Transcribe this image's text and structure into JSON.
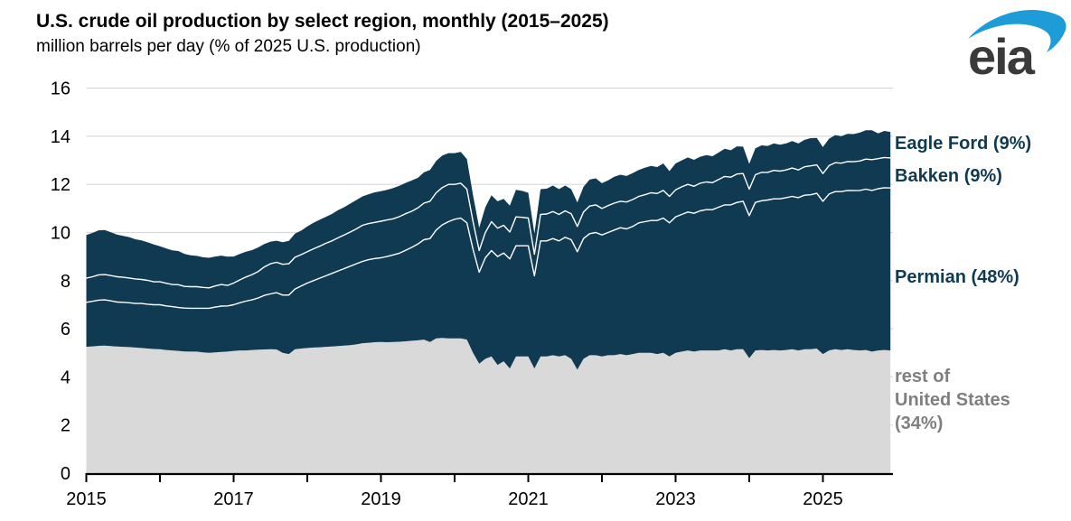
{
  "header": {
    "title": "U.S. crude oil production by select region, monthly (2015–2025)",
    "subtitle": "million barrels per day (% of 2025 U.S. production)"
  },
  "logo": {
    "text": "eia",
    "swoosh_color": "#1e9cd8",
    "text_color": "#3a3a3a"
  },
  "chart_data": {
    "type": "area",
    "stacked": true,
    "title": "U.S. crude oil production by select region, monthly (2015–2025)",
    "units": "million barrels per day",
    "x_start": "2015-01",
    "x_end": "2025-12",
    "frequency": "monthly",
    "xlim_years": [
      2015,
      2025.92
    ],
    "ylim": [
      0,
      16
    ],
    "y_ticks": [
      0,
      2,
      4,
      6,
      8,
      10,
      12,
      14,
      16
    ],
    "x_tick_years": [
      2015,
      2016,
      2017,
      2018,
      2019,
      2020,
      2021,
      2022,
      2023,
      2024,
      2025
    ],
    "x_label_years": [
      "2015",
      "2017",
      "2019",
      "2021",
      "2023",
      "2025"
    ],
    "grid": "horizontal",
    "legend_position": "right-annotations",
    "colors": {
      "region_fill": "#0f3a52",
      "rest_fill": "#d9d9d9",
      "separator_line": "#ffffff",
      "gridline": "#d9d9d9",
      "axis": "#000000"
    },
    "series_labels": {
      "eagle_ford": "Eagle Ford (9%)",
      "bakken": "Bakken (9%)",
      "permian": "Permian (48%)",
      "rest": "rest of\nUnited States\n(34%)"
    },
    "series": [
      {
        "name": "rest of United States",
        "share_of_2025_production": "34%",
        "color": "#d9d9d9",
        "values": [
          5.25,
          5.27,
          5.29,
          5.3,
          5.28,
          5.26,
          5.25,
          5.24,
          5.22,
          5.2,
          5.18,
          5.16,
          5.15,
          5.12,
          5.1,
          5.08,
          5.06,
          5.05,
          5.05,
          5.02,
          5.0,
          5.02,
          5.04,
          5.05,
          5.08,
          5.1,
          5.1,
          5.12,
          5.13,
          5.14,
          5.15,
          5.14,
          5.0,
          4.95,
          5.15,
          5.18,
          5.2,
          5.22,
          5.23,
          5.25,
          5.26,
          5.28,
          5.3,
          5.32,
          5.35,
          5.4,
          5.42,
          5.44,
          5.45,
          5.44,
          5.45,
          5.46,
          5.48,
          5.5,
          5.52,
          5.55,
          5.45,
          5.6,
          5.62,
          5.6,
          5.6,
          5.6,
          5.55,
          5.0,
          4.55,
          4.75,
          4.85,
          4.5,
          4.65,
          4.35,
          4.85,
          4.85,
          4.85,
          4.35,
          4.85,
          4.85,
          4.9,
          4.85,
          4.9,
          4.75,
          4.3,
          4.75,
          4.9,
          4.9,
          4.85,
          4.9,
          4.9,
          4.95,
          4.9,
          4.95,
          5.0,
          5.0,
          5.0,
          4.95,
          5.0,
          4.85,
          5.0,
          5.05,
          5.1,
          5.05,
          5.1,
          5.1,
          5.1,
          5.1,
          5.15,
          5.1,
          5.15,
          5.15,
          4.78,
          5.1,
          5.12,
          5.1,
          5.12,
          5.1,
          5.12,
          5.15,
          5.1,
          5.15,
          5.15,
          5.18,
          4.95,
          5.1,
          5.15,
          5.12,
          5.15,
          5.12,
          5.1,
          5.12,
          5.05,
          5.1,
          5.12,
          5.1
        ]
      },
      {
        "name": "Permian",
        "share_of_2025_production": "48%",
        "color": "#0f3a52",
        "values": [
          1.85,
          1.87,
          1.9,
          1.9,
          1.88,
          1.85,
          1.85,
          1.84,
          1.83,
          1.85,
          1.84,
          1.84,
          1.85,
          1.83,
          1.82,
          1.8,
          1.8,
          1.8,
          1.8,
          1.83,
          1.85,
          1.88,
          1.9,
          1.9,
          1.92,
          1.98,
          2.05,
          2.08,
          2.15,
          2.25,
          2.3,
          2.36,
          2.4,
          2.45,
          2.5,
          2.6,
          2.7,
          2.78,
          2.87,
          2.95,
          3.04,
          3.12,
          3.2,
          3.28,
          3.35,
          3.4,
          3.45,
          3.48,
          3.5,
          3.56,
          3.62,
          3.68,
          3.78,
          3.88,
          4.0,
          4.15,
          4.3,
          4.5,
          4.7,
          4.85,
          4.95,
          5.0,
          4.85,
          4.3,
          3.8,
          4.2,
          4.4,
          4.5,
          4.5,
          4.55,
          4.6,
          4.6,
          4.6,
          3.85,
          4.8,
          4.8,
          4.85,
          4.8,
          4.9,
          4.95,
          4.9,
          5.0,
          5.05,
          5.1,
          5.05,
          5.1,
          5.2,
          5.25,
          5.25,
          5.3,
          5.4,
          5.45,
          5.5,
          5.55,
          5.6,
          5.55,
          5.65,
          5.7,
          5.75,
          5.75,
          5.8,
          5.85,
          5.85,
          5.95,
          6.0,
          6.05,
          6.1,
          6.15,
          5.92,
          6.15,
          6.2,
          6.25,
          6.28,
          6.3,
          6.33,
          6.35,
          6.35,
          6.4,
          6.42,
          6.45,
          6.35,
          6.5,
          6.55,
          6.58,
          6.6,
          6.62,
          6.65,
          6.68,
          6.7,
          6.72,
          6.74,
          6.75
        ]
      },
      {
        "name": "Bakken",
        "share_of_2025_production": "9%",
        "color": "#0f3a52",
        "values": [
          1.0,
          1.02,
          1.05,
          1.05,
          1.05,
          1.05,
          1.04,
          1.03,
          1.02,
          1.0,
          0.99,
          0.95,
          0.95,
          0.94,
          0.92,
          0.95,
          0.9,
          0.9,
          0.9,
          0.87,
          0.85,
          0.88,
          0.9,
          0.85,
          0.9,
          0.95,
          1.0,
          1.05,
          1.1,
          1.18,
          1.25,
          1.26,
          1.28,
          1.3,
          1.32,
          1.3,
          1.3,
          1.32,
          1.33,
          1.35,
          1.35,
          1.38,
          1.4,
          1.42,
          1.45,
          1.5,
          1.5,
          1.5,
          1.52,
          1.52,
          1.5,
          1.52,
          1.52,
          1.5,
          1.5,
          1.52,
          1.55,
          1.55,
          1.55,
          1.55,
          1.45,
          1.45,
          1.4,
          1.15,
          0.9,
          1.05,
          1.2,
          1.18,
          1.15,
          1.12,
          1.2,
          1.18,
          1.15,
          0.9,
          1.1,
          1.12,
          1.12,
          1.1,
          1.1,
          1.08,
          1.05,
          1.1,
          1.15,
          1.15,
          1.1,
          1.12,
          1.12,
          1.1,
          1.12,
          1.12,
          1.1,
          1.12,
          1.15,
          1.12,
          1.15,
          1.1,
          1.12,
          1.15,
          1.15,
          1.12,
          1.15,
          1.15,
          1.12,
          1.15,
          1.18,
          1.15,
          1.18,
          1.15,
          1.1,
          1.15,
          1.18,
          1.15,
          1.18,
          1.15,
          1.15,
          1.18,
          1.15,
          1.18,
          1.2,
          1.18,
          1.15,
          1.18,
          1.2,
          1.18,
          1.2,
          1.2,
          1.22,
          1.25,
          1.28,
          1.25,
          1.26,
          1.25
        ]
      },
      {
        "name": "Eagle Ford",
        "share_of_2025_production": "9%",
        "color": "#0f3a52",
        "values": [
          1.8,
          1.82,
          1.85,
          1.85,
          1.8,
          1.75,
          1.72,
          1.7,
          1.65,
          1.62,
          1.58,
          1.55,
          1.48,
          1.45,
          1.42,
          1.4,
          1.35,
          1.3,
          1.28,
          1.25,
          1.25,
          1.22,
          1.2,
          1.2,
          1.1,
          1.08,
          1.05,
          1.02,
          1.0,
          0.95,
          0.92,
          0.9,
          0.92,
          0.95,
          0.98,
          1.0,
          1.05,
          1.08,
          1.1,
          1.1,
          1.12,
          1.15,
          1.15,
          1.18,
          1.2,
          1.2,
          1.22,
          1.25,
          1.25,
          1.25,
          1.28,
          1.28,
          1.28,
          1.28,
          1.25,
          1.28,
          1.3,
          1.32,
          1.33,
          1.3,
          1.3,
          1.3,
          1.25,
          1.1,
          0.95,
          1.05,
          1.1,
          1.12,
          1.1,
          1.1,
          1.12,
          1.1,
          1.05,
          0.85,
          1.05,
          1.05,
          1.08,
          1.05,
          1.05,
          1.02,
          1.0,
          1.05,
          1.1,
          1.1,
          1.05,
          1.05,
          1.1,
          1.1,
          1.08,
          1.1,
          1.1,
          1.12,
          1.12,
          1.1,
          1.12,
          1.05,
          1.1,
          1.1,
          1.12,
          1.1,
          1.1,
          1.12,
          1.1,
          1.12,
          1.15,
          1.12,
          1.15,
          1.12,
          1.05,
          1.1,
          1.12,
          1.1,
          1.12,
          1.1,
          1.1,
          1.12,
          1.1,
          1.12,
          1.15,
          1.12,
          1.1,
          1.12,
          1.15,
          1.12,
          1.15,
          1.15,
          1.18,
          1.2,
          1.22,
          1.05,
          1.1,
          1.08
        ]
      }
    ]
  }
}
